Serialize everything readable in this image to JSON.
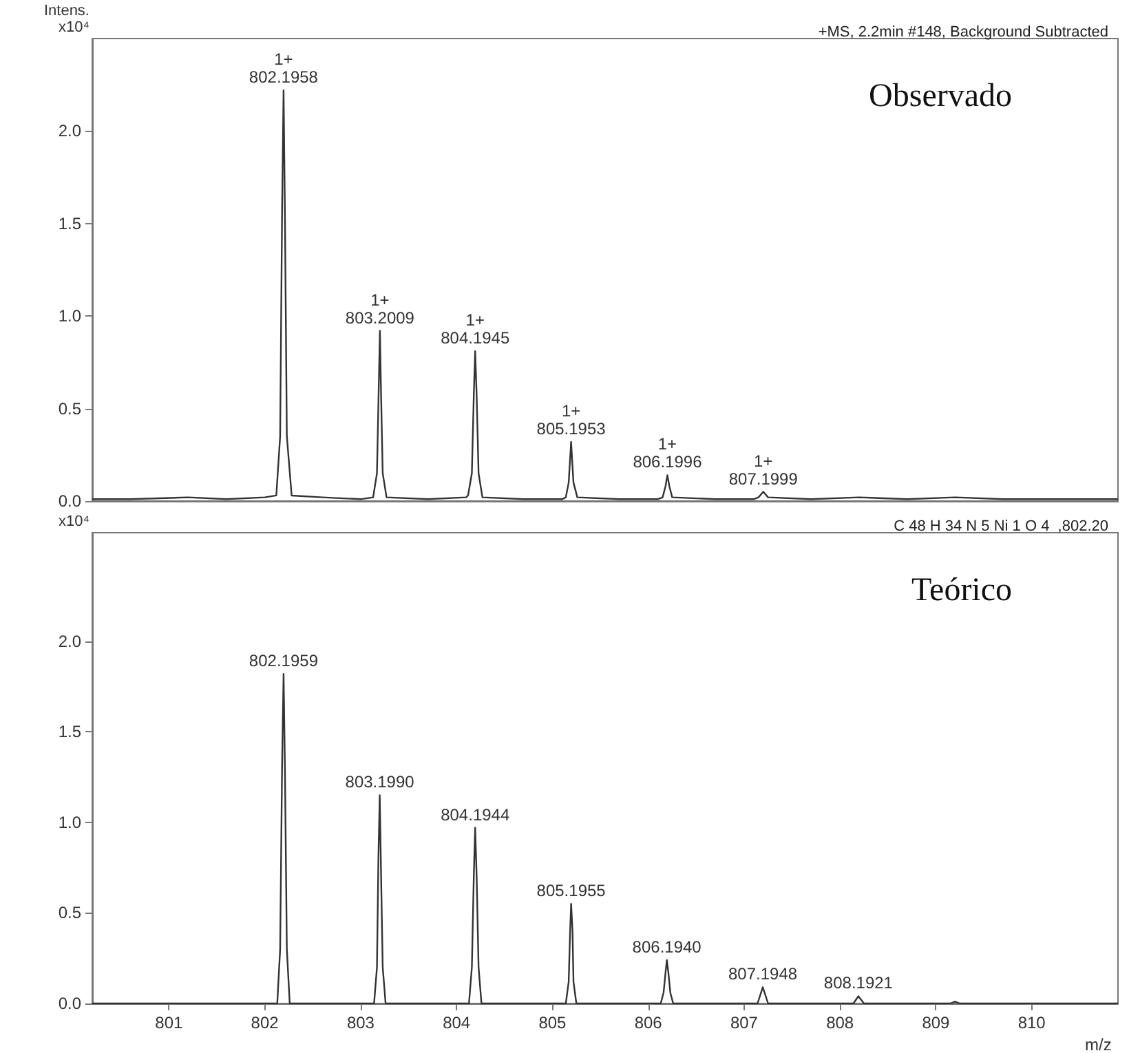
{
  "chart_data": [
    {
      "type": "line",
      "title": "Observado",
      "subtitle": "+MS, 2.2min #148, Background Subtracted",
      "ylabel": "Intens.\nx10⁴",
      "color": "#333333",
      "grid": false,
      "tick_labels": "y",
      "xlim": [
        800.2,
        810.9
      ],
      "ylim": [
        0,
        2.5
      ],
      "yticks": [
        {
          "value": 0,
          "label": "0.0"
        },
        {
          "value": 0.5,
          "label": "0.5"
        },
        {
          "value": 1,
          "label": "1.0"
        },
        {
          "value": 1.5,
          "label": "1.5"
        },
        {
          "value": 2,
          "label": "2.0"
        }
      ],
      "x": [
        800.2,
        800.6,
        801.2,
        801.6,
        802.0,
        802.12,
        802.16,
        802.18,
        802.1958,
        802.21,
        802.23,
        802.28,
        802.6,
        803.0,
        803.13,
        803.17,
        803.19,
        803.2009,
        803.21,
        803.23,
        803.27,
        803.7,
        804.1,
        804.12,
        804.16,
        804.18,
        804.1945,
        804.21,
        804.23,
        804.27,
        804.7,
        805.1,
        805.14,
        805.17,
        805.185,
        805.1953,
        805.205,
        805.22,
        805.26,
        805.7,
        806.1,
        806.15,
        806.18,
        806.1996,
        806.22,
        806.25,
        806.7,
        807.1,
        807.15,
        807.1999,
        807.25,
        807.7,
        808.2,
        808.7,
        809.2,
        809.7,
        810.2,
        810.9
      ],
      "values": [
        0.01,
        0.01,
        0.02,
        0.01,
        0.02,
        0.03,
        0.35,
        1.55,
        2.22,
        1.55,
        0.35,
        0.03,
        0.02,
        0.01,
        0.02,
        0.15,
        0.65,
        0.92,
        0.65,
        0.15,
        0.02,
        0.01,
        0.02,
        0.03,
        0.15,
        0.57,
        0.81,
        0.57,
        0.15,
        0.02,
        0.01,
        0.01,
        0.02,
        0.1,
        0.23,
        0.32,
        0.23,
        0.1,
        0.02,
        0.01,
        0.01,
        0.02,
        0.08,
        0.14,
        0.08,
        0.02,
        0.01,
        0.01,
        0.02,
        0.05,
        0.02,
        0.01,
        0.02,
        0.01,
        0.02,
        0.01,
        0.01,
        0.01
      ],
      "annotations": [
        {
          "text": "1+\n802.1958",
          "x": 802.1958,
          "y": 2.22
        },
        {
          "text": "1+\n803.2009",
          "x": 803.2009,
          "y": 0.92
        },
        {
          "text": "1+\n804.1945",
          "x": 804.1945,
          "y": 0.81
        },
        {
          "text": "1+\n805.1953",
          "x": 805.1953,
          "y": 0.32
        },
        {
          "text": "1+\n806.1996",
          "x": 806.1996,
          "y": 0.14
        },
        {
          "text": "1+\n807.1999",
          "x": 807.1999,
          "y": 0.05
        }
      ]
    },
    {
      "type": "line",
      "title": "Teórico",
      "subtitle": "C 48 H 34 N 5 Ni 1 O 4  ,802.20",
      "ylabel": "x10⁴",
      "xlabel": "m/z",
      "color": "#333333",
      "grid": false,
      "xlim": [
        800.2,
        810.9
      ],
      "ylim": [
        0,
        2.6
      ],
      "xticks": [
        801,
        802,
        803,
        804,
        805,
        806,
        807,
        808,
        809,
        810
      ],
      "yticks": [
        {
          "value": 0,
          "label": "0.0"
        },
        {
          "value": 0.5,
          "label": "0.5"
        },
        {
          "value": 1,
          "label": "1.0"
        },
        {
          "value": 1.5,
          "label": "1.5"
        },
        {
          "value": 2,
          "label": "2.0"
        }
      ],
      "x": [
        800.2,
        802.13,
        802.16,
        802.18,
        802.1959,
        802.21,
        802.23,
        802.26,
        803.14,
        803.17,
        803.185,
        803.199,
        803.21,
        803.23,
        803.26,
        804.13,
        804.16,
        804.18,
        804.1944,
        804.21,
        804.23,
        804.26,
        805.14,
        805.17,
        805.185,
        805.1955,
        805.21,
        805.22,
        805.25,
        806.13,
        806.16,
        806.18,
        806.194,
        806.21,
        806.23,
        806.26,
        807.14,
        807.1948,
        807.25,
        808.14,
        808.1921,
        808.25,
        809.15,
        809.2,
        809.25,
        810.9
      ],
      "values": [
        0,
        0,
        0.3,
        1.3,
        1.82,
        1.3,
        0.3,
        0,
        0,
        0.2,
        0.8,
        1.15,
        0.8,
        0.2,
        0,
        0,
        0.2,
        0.7,
        0.97,
        0.7,
        0.2,
        0,
        0,
        0.12,
        0.4,
        0.55,
        0.4,
        0.12,
        0,
        0,
        0.06,
        0.17,
        0.24,
        0.17,
        0.06,
        0,
        0,
        0.09,
        0,
        0,
        0.04,
        0,
        0,
        0.01,
        0,
        0
      ],
      "annotations": [
        {
          "text": "802.1959",
          "x": 802.1959,
          "y": 1.82
        },
        {
          "text": "803.1990",
          "x": 803.199,
          "y": 1.15
        },
        {
          "text": "804.1944",
          "x": 804.1944,
          "y": 0.97
        },
        {
          "text": "805.1955",
          "x": 805.1955,
          "y": 0.55
        },
        {
          "text": "806.1940",
          "x": 806.194,
          "y": 0.24
        },
        {
          "text": "807.1948",
          "x": 807.1948,
          "y": 0.09
        },
        {
          "text": "808.1921",
          "x": 808.1921,
          "y": 0.04
        }
      ]
    }
  ]
}
